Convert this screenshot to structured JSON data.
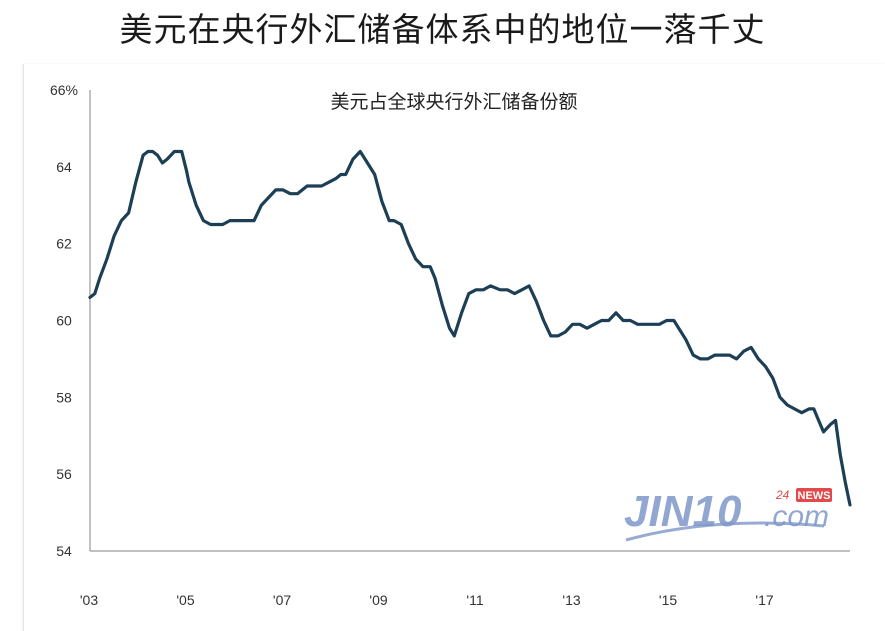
{
  "headline": "美元在央行外汇储备体系中的地位一落千丈",
  "watermark": {
    "brand": "JIN10",
    "suffix": ".com",
    "tag_24": "24",
    "tag_news": "NEWS"
  },
  "chart_data": {
    "type": "line",
    "title": "美元占全球央行外汇储备份额",
    "xlabel": "",
    "ylabel": "",
    "xlim": [
      2003.0,
      2018.75
    ],
    "ylim": [
      54,
      66
    ],
    "grid": false,
    "x_ticks": [
      {
        "value": 2003,
        "label": "'03"
      },
      {
        "value": 2005,
        "label": "'05"
      },
      {
        "value": 2007,
        "label": "'07"
      },
      {
        "value": 2009,
        "label": "'09"
      },
      {
        "value": 2011,
        "label": "'11"
      },
      {
        "value": 2013,
        "label": "'13"
      },
      {
        "value": 2015,
        "label": "'15"
      },
      {
        "value": 2017,
        "label": "'17"
      }
    ],
    "y_ticks": [
      {
        "value": 66,
        "label": "66%"
      },
      {
        "value": 64,
        "label": "64"
      },
      {
        "value": 62,
        "label": "62"
      },
      {
        "value": 60,
        "label": "60"
      },
      {
        "value": 58,
        "label": "58"
      },
      {
        "value": 56,
        "label": "56"
      },
      {
        "value": 54,
        "label": "54"
      }
    ],
    "color": "#1d3f55",
    "series": [
      {
        "x": [
          2003.0,
          2003.1,
          2003.2,
          2003.35,
          2003.5,
          2003.65,
          2003.8,
          2003.95,
          2004.1,
          2004.2,
          2004.3,
          2004.4,
          2004.5,
          2004.6,
          2004.75,
          2004.9,
          2005.0,
          2005.05,
          2005.2,
          2005.35,
          2005.5,
          2005.6,
          2005.75,
          2005.9,
          2006.1,
          2006.25,
          2006.4,
          2006.55,
          2006.7,
          2006.85,
          2007.0,
          2007.15,
          2007.3,
          2007.5,
          2007.65,
          2007.8,
          2007.95,
          2008.1,
          2008.2,
          2008.3,
          2008.45,
          2008.6,
          2008.75,
          2008.9,
          2009.05,
          2009.2,
          2009.3,
          2009.45,
          2009.6,
          2009.75,
          2009.9,
          2010.05,
          2010.15,
          2010.3,
          2010.45,
          2010.55,
          2010.7,
          2010.85,
          2011.0,
          2011.15,
          2011.3,
          2011.5,
          2011.65,
          2011.8,
          2011.95,
          2012.1,
          2012.25,
          2012.4,
          2012.55,
          2012.7,
          2012.85,
          2013.0,
          2013.15,
          2013.3,
          2013.45,
          2013.6,
          2013.75,
          2013.9,
          2014.05,
          2014.2,
          2014.35,
          2014.5,
          2014.65,
          2014.8,
          2014.95,
          2015.1,
          2015.2,
          2015.35,
          2015.5,
          2015.65,
          2015.8,
          2015.95,
          2016.1,
          2016.25,
          2016.4,
          2016.55,
          2016.7,
          2016.85,
          2017.0,
          2017.15,
          2017.3,
          2017.45,
          2017.6,
          2017.75,
          2017.9,
          2018.0,
          2018.1,
          2018.2,
          2018.35,
          2018.45,
          2018.55,
          2018.65,
          2018.75
        ],
        "y": [
          60.6,
          60.7,
          61.1,
          61.6,
          62.2,
          62.6,
          62.8,
          63.6,
          64.3,
          64.4,
          64.4,
          64.3,
          64.1,
          64.2,
          64.4,
          64.4,
          63.9,
          63.6,
          63.0,
          62.6,
          62.5,
          62.5,
          62.5,
          62.6,
          62.6,
          62.6,
          62.6,
          63.0,
          63.2,
          63.4,
          63.4,
          63.3,
          63.3,
          63.5,
          63.5,
          63.5,
          63.6,
          63.7,
          63.8,
          63.8,
          64.2,
          64.4,
          64.1,
          63.8,
          63.1,
          62.6,
          62.6,
          62.5,
          62.0,
          61.6,
          61.4,
          61.4,
          61.1,
          60.4,
          59.8,
          59.6,
          60.2,
          60.7,
          60.8,
          60.8,
          60.9,
          60.8,
          60.8,
          60.7,
          60.8,
          60.9,
          60.5,
          60.0,
          59.6,
          59.6,
          59.7,
          59.9,
          59.9,
          59.8,
          59.9,
          60.0,
          60.0,
          60.2,
          60.0,
          60.0,
          59.9,
          59.9,
          59.9,
          59.9,
          60.0,
          60.0,
          59.8,
          59.5,
          59.1,
          59.0,
          59.0,
          59.1,
          59.1,
          59.1,
          59.0,
          59.2,
          59.3,
          59.0,
          58.8,
          58.5,
          58.0,
          57.8,
          57.7,
          57.6,
          57.7,
          57.7,
          57.4,
          57.1,
          57.3,
          57.4,
          56.5,
          55.8,
          55.2
        ]
      }
    ]
  }
}
